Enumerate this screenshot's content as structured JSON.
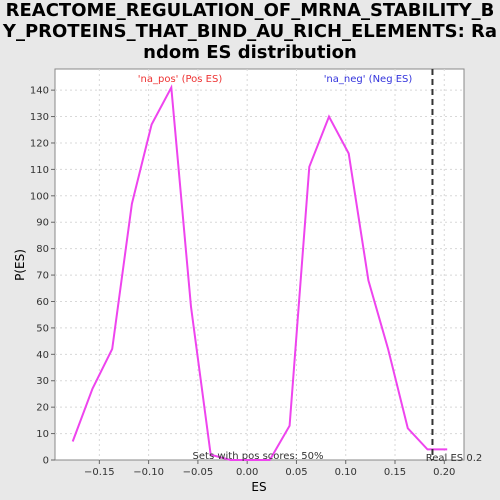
{
  "chart_data": {
    "type": "line",
    "title": "REACTOME_REGULATION_OF_MRNA_STABILITY_BY_PROTEINS_THAT_BIND_AU_RICH_ELEMENTS: Random ES distribution",
    "xlabel": "ES",
    "ylabel": "P(ES)",
    "xlim": [
      -0.195,
      0.22
    ],
    "ylim": [
      0,
      148
    ],
    "x_ticks": [
      -0.15,
      -0.1,
      -0.05,
      0.0,
      0.05,
      0.1,
      0.15,
      0.2
    ],
    "x_tick_labels": [
      "−0.15",
      "−0.10",
      "−0.05",
      "0.00",
      "0.05",
      "0.10",
      "0.15",
      "0.20"
    ],
    "y_ticks": [
      0,
      10,
      20,
      30,
      40,
      50,
      60,
      70,
      80,
      90,
      100,
      110,
      120,
      130,
      140
    ],
    "grid": true,
    "series": [
      {
        "color": "#ee44ee",
        "x": [
          -0.177,
          -0.157,
          -0.137,
          -0.117,
          -0.097,
          -0.077,
          -0.057,
          -0.037,
          -0.017,
          0.003,
          0.023,
          0.043,
          0.063,
          0.083,
          0.103,
          0.123,
          0.143,
          0.163,
          0.183,
          0.203
        ],
        "y": [
          7,
          27,
          42,
          97,
          127,
          141,
          58,
          2,
          0,
          0,
          0,
          13,
          111,
          130,
          116,
          68,
          42,
          12,
          4,
          4
        ]
      }
    ],
    "real_es": 0.188,
    "annotations": {
      "pos": {
        "text": "'na_pos' (Pos ES)",
        "color": "#ee3333"
      },
      "neg": {
        "text": "'na_neg' (Neg ES)",
        "color": "#3333dd"
      },
      "sets_with_pos": "Sets with pos scores: 50%",
      "real_es_label": "Real ES 0.2"
    }
  }
}
